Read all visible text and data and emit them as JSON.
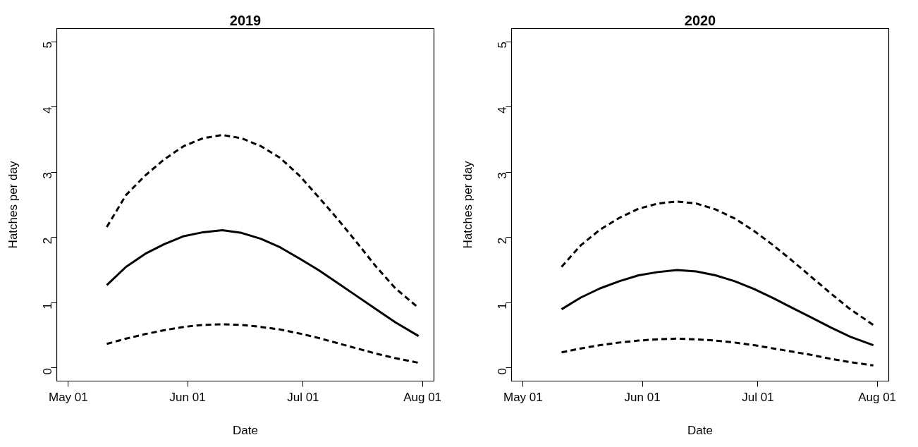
{
  "chart_data": [
    {
      "type": "line",
      "title": "2019",
      "xlabel": "Date",
      "ylabel": "Hatches per day",
      "x": [
        "2019-05-11",
        "2019-05-16",
        "2019-05-21",
        "2019-05-26",
        "2019-05-31",
        "2019-06-05",
        "2019-06-10",
        "2019-06-15",
        "2019-06-20",
        "2019-06-25",
        "2019-06-30",
        "2019-07-05",
        "2019-07-10",
        "2019-07-15",
        "2019-07-20",
        "2019-07-25",
        "2019-07-31"
      ],
      "series": [
        {
          "color": "#000000",
          "line_style": "solid",
          "values": [
            1.27,
            1.55,
            1.75,
            1.9,
            2.02,
            2.08,
            2.11,
            2.07,
            1.98,
            1.85,
            1.68,
            1.5,
            1.3,
            1.1,
            0.9,
            0.7,
            0.49
          ]
        },
        {
          "color": "#000000",
          "line_style": "dashed",
          "values": [
            2.16,
            2.65,
            2.95,
            3.2,
            3.4,
            3.52,
            3.57,
            3.52,
            3.4,
            3.22,
            2.95,
            2.62,
            2.28,
            1.92,
            1.55,
            1.22,
            0.92
          ]
        },
        {
          "color": "#000000",
          "line_style": "dashed",
          "values": [
            0.37,
            0.45,
            0.52,
            0.58,
            0.63,
            0.66,
            0.67,
            0.66,
            0.63,
            0.59,
            0.53,
            0.46,
            0.38,
            0.3,
            0.22,
            0.15,
            0.08
          ]
        }
      ],
      "xlim": [
        "2019-04-28",
        "2019-08-04"
      ],
      "xticks": [
        {
          "value": "2019-05-01",
          "label": "May 01"
        },
        {
          "value": "2019-06-01",
          "label": "Jun 01"
        },
        {
          "value": "2019-07-01",
          "label": "Jul 01"
        },
        {
          "value": "2019-08-01",
          "label": "Aug 01"
        }
      ],
      "ylim": [
        -0.2,
        5.2
      ],
      "yticks": [
        0,
        1,
        2,
        3,
        4,
        5
      ],
      "grid": false,
      "marker": "none"
    },
    {
      "type": "line",
      "title": "2020",
      "xlabel": "Date",
      "ylabel": "Hatches per day",
      "x": [
        "2020-05-11",
        "2020-05-16",
        "2020-05-21",
        "2020-05-26",
        "2020-05-31",
        "2020-06-05",
        "2020-06-10",
        "2020-06-15",
        "2020-06-20",
        "2020-06-25",
        "2020-06-30",
        "2020-07-05",
        "2020-07-10",
        "2020-07-15",
        "2020-07-20",
        "2020-07-25",
        "2020-07-31"
      ],
      "series": [
        {
          "color": "#000000",
          "line_style": "solid",
          "values": [
            0.9,
            1.08,
            1.22,
            1.33,
            1.42,
            1.47,
            1.5,
            1.48,
            1.42,
            1.33,
            1.21,
            1.07,
            0.92,
            0.77,
            0.62,
            0.48,
            0.35
          ]
        },
        {
          "color": "#000000",
          "line_style": "dashed",
          "values": [
            1.55,
            1.88,
            2.12,
            2.3,
            2.44,
            2.52,
            2.55,
            2.52,
            2.43,
            2.29,
            2.1,
            1.88,
            1.64,
            1.39,
            1.14,
            0.9,
            0.66
          ]
        },
        {
          "color": "#000000",
          "line_style": "dashed",
          "values": [
            0.24,
            0.3,
            0.35,
            0.39,
            0.42,
            0.44,
            0.45,
            0.44,
            0.42,
            0.39,
            0.35,
            0.3,
            0.25,
            0.2,
            0.14,
            0.09,
            0.04
          ]
        }
      ],
      "xlim": [
        "2020-04-28",
        "2020-08-04"
      ],
      "xticks": [
        {
          "value": "2020-05-01",
          "label": "May 01"
        },
        {
          "value": "2020-06-01",
          "label": "Jun 01"
        },
        {
          "value": "2020-07-01",
          "label": "Jul 01"
        },
        {
          "value": "2020-08-01",
          "label": "Aug 01"
        }
      ],
      "ylim": [
        -0.2,
        5.2
      ],
      "yticks": [
        0,
        1,
        2,
        3,
        4,
        5
      ],
      "grid": false,
      "marker": "none"
    }
  ]
}
